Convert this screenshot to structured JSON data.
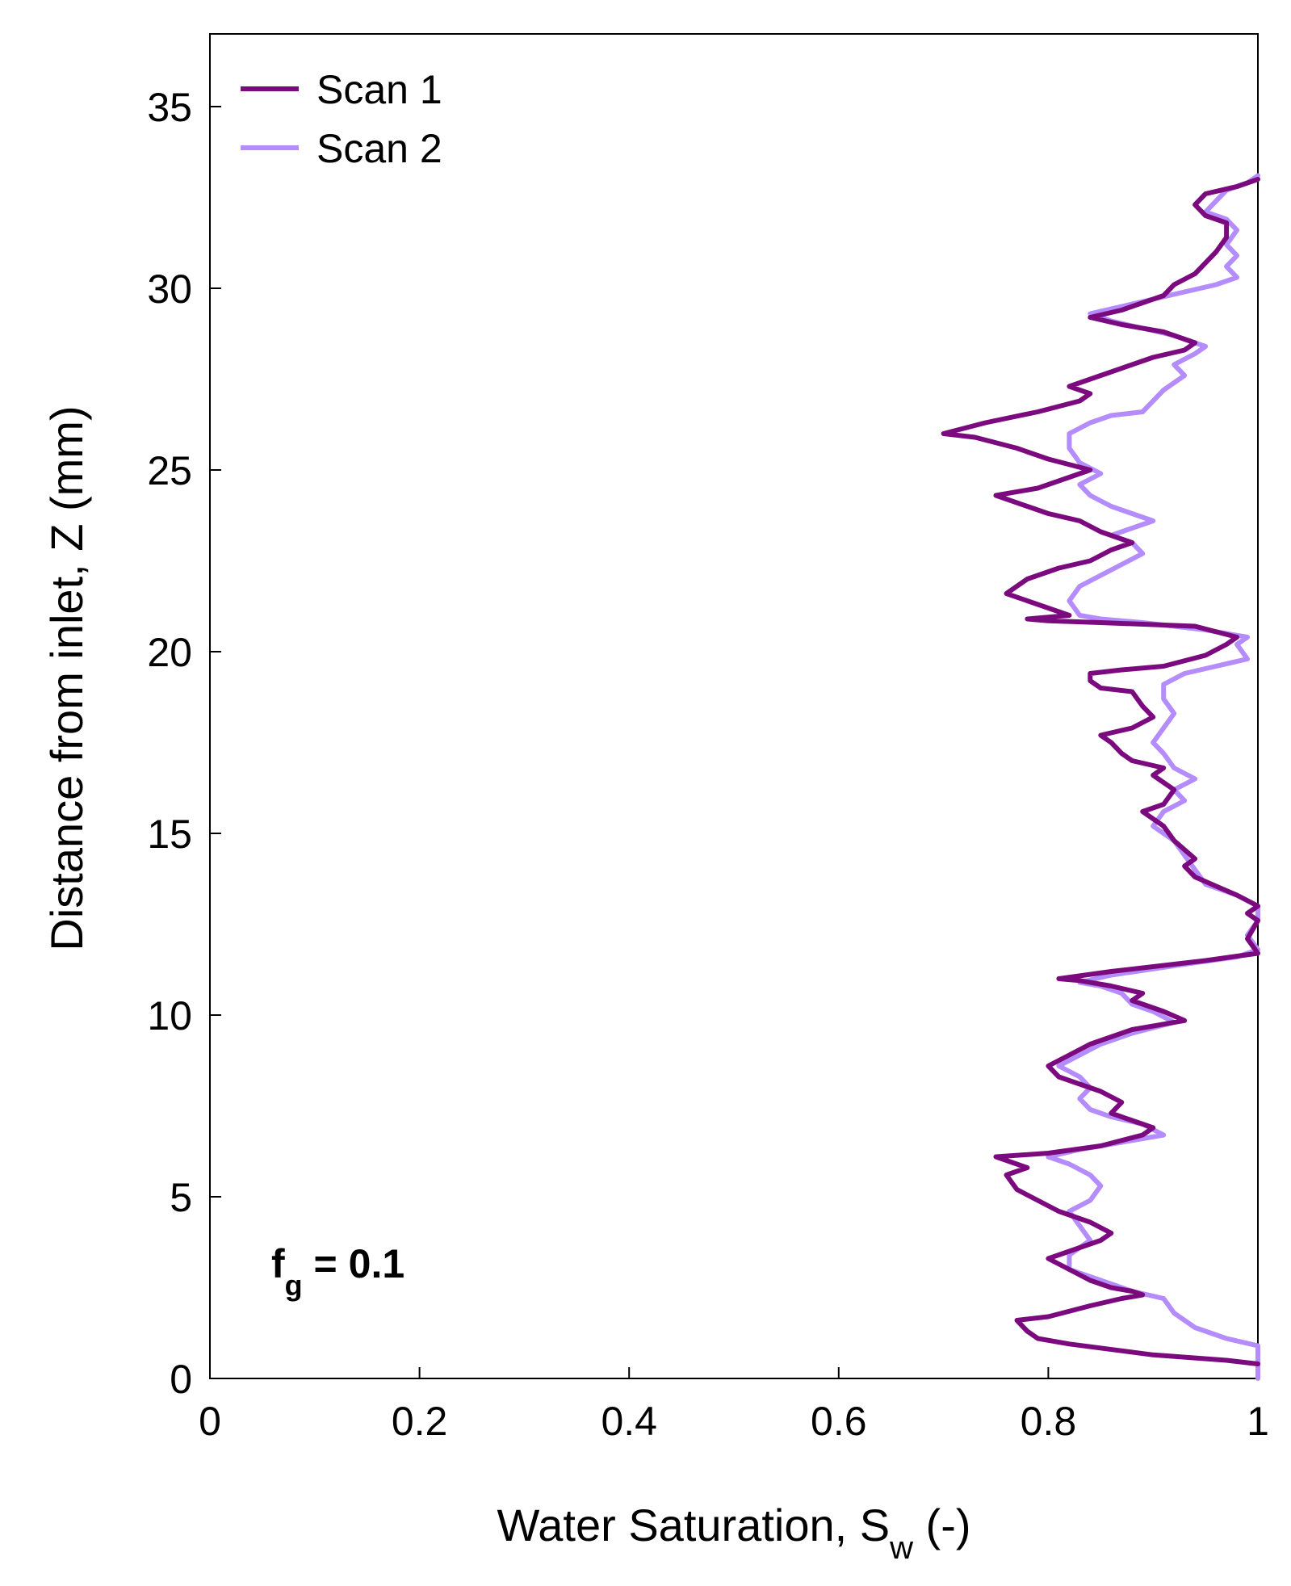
{
  "chart_data": {
    "type": "line",
    "orientation": "vertical-profile",
    "xlabel": "Water Saturation, S",
    "xlabel_subscript": "w",
    "xlabel_suffix": " (-)",
    "ylabel": "Distance from inlet, Z (mm)",
    "xlim": [
      0,
      1
    ],
    "ylim": [
      0,
      37
    ],
    "xticks": [
      0,
      0.2,
      0.4,
      0.6,
      0.8,
      1
    ],
    "xtick_labels": [
      "0",
      "0.2",
      "0.4",
      "0.6",
      "0.8",
      "1"
    ],
    "yticks": [
      0,
      5,
      10,
      15,
      20,
      25,
      30,
      35
    ],
    "ytick_labels": [
      "0",
      "5",
      "10",
      "15",
      "20",
      "25",
      "30",
      "35"
    ],
    "grid": false,
    "legend_position": "top-left",
    "annotation": {
      "main": "f",
      "subscript": "g",
      "rest": " = 0.1"
    },
    "series": [
      {
        "name": "Scan 1",
        "color": "#7b0a7f",
        "points": [
          [
            1.0,
            0.4
          ],
          [
            0.97,
            0.5
          ],
          [
            0.9,
            0.65
          ],
          [
            0.82,
            0.95
          ],
          [
            0.79,
            1.1
          ],
          [
            0.78,
            1.3
          ],
          [
            0.77,
            1.6
          ],
          [
            0.8,
            1.7
          ],
          [
            0.84,
            2.0
          ],
          [
            0.87,
            2.2
          ],
          [
            0.89,
            2.3
          ],
          [
            0.88,
            2.4
          ],
          [
            0.86,
            2.5
          ],
          [
            0.84,
            2.7
          ],
          [
            0.82,
            3.0
          ],
          [
            0.8,
            3.3
          ],
          [
            0.83,
            3.6
          ],
          [
            0.85,
            3.8
          ],
          [
            0.86,
            4.0
          ],
          [
            0.84,
            4.3
          ],
          [
            0.81,
            4.6
          ],
          [
            0.79,
            4.9
          ],
          [
            0.77,
            5.2
          ],
          [
            0.76,
            5.6
          ],
          [
            0.78,
            5.8
          ],
          [
            0.75,
            6.1
          ],
          [
            0.8,
            6.2
          ],
          [
            0.85,
            6.4
          ],
          [
            0.89,
            6.7
          ],
          [
            0.9,
            6.9
          ],
          [
            0.88,
            7.1
          ],
          [
            0.86,
            7.3
          ],
          [
            0.87,
            7.6
          ],
          [
            0.85,
            7.9
          ],
          [
            0.83,
            8.1
          ],
          [
            0.81,
            8.3
          ],
          [
            0.8,
            8.6
          ],
          [
            0.82,
            8.9
          ],
          [
            0.84,
            9.2
          ],
          [
            0.88,
            9.6
          ],
          [
            0.93,
            9.85
          ],
          [
            0.91,
            10.1
          ],
          [
            0.88,
            10.4
          ],
          [
            0.89,
            10.6
          ],
          [
            0.86,
            10.8
          ],
          [
            0.83,
            10.95
          ],
          [
            0.81,
            11.0
          ],
          [
            0.86,
            11.2
          ],
          [
            0.95,
            11.5
          ],
          [
            1.0,
            11.7
          ],
          [
            0.99,
            12.1
          ],
          [
            1.0,
            12.6
          ],
          [
            0.99,
            12.8
          ],
          [
            1.0,
            13.0
          ],
          [
            0.98,
            13.3
          ],
          [
            0.94,
            13.8
          ],
          [
            0.93,
            14.1
          ],
          [
            0.94,
            14.3
          ],
          [
            0.92,
            14.8
          ],
          [
            0.91,
            15.2
          ],
          [
            0.89,
            15.6
          ],
          [
            0.91,
            15.8
          ],
          [
            0.92,
            16.2
          ],
          [
            0.9,
            16.6
          ],
          [
            0.91,
            16.8
          ],
          [
            0.88,
            17.0
          ],
          [
            0.87,
            17.2
          ],
          [
            0.86,
            17.5
          ],
          [
            0.85,
            17.7
          ],
          [
            0.88,
            17.9
          ],
          [
            0.9,
            18.2
          ],
          [
            0.89,
            18.5
          ],
          [
            0.88,
            18.9
          ],
          [
            0.85,
            19.0
          ],
          [
            0.84,
            19.2
          ],
          [
            0.84,
            19.4
          ],
          [
            0.87,
            19.5
          ],
          [
            0.91,
            19.6
          ],
          [
            0.95,
            19.9
          ],
          [
            0.97,
            20.2
          ],
          [
            0.98,
            20.4
          ],
          [
            0.94,
            20.7
          ],
          [
            0.85,
            20.8
          ],
          [
            0.8,
            20.85
          ],
          [
            0.78,
            20.9
          ],
          [
            0.82,
            21.0
          ],
          [
            0.79,
            21.3
          ],
          [
            0.76,
            21.6
          ],
          [
            0.78,
            22.0
          ],
          [
            0.81,
            22.3
          ],
          [
            0.84,
            22.5
          ],
          [
            0.86,
            22.8
          ],
          [
            0.88,
            23.0
          ],
          [
            0.85,
            23.3
          ],
          [
            0.83,
            23.6
          ],
          [
            0.8,
            23.8
          ],
          [
            0.78,
            24.0
          ],
          [
            0.75,
            24.3
          ],
          [
            0.79,
            24.5
          ],
          [
            0.82,
            24.8
          ],
          [
            0.84,
            25.0
          ],
          [
            0.8,
            25.3
          ],
          [
            0.77,
            25.6
          ],
          [
            0.73,
            25.9
          ],
          [
            0.7,
            26.0
          ],
          [
            0.74,
            26.3
          ],
          [
            0.79,
            26.6
          ],
          [
            0.83,
            26.9
          ],
          [
            0.84,
            27.1
          ],
          [
            0.82,
            27.3
          ],
          [
            0.84,
            27.5
          ],
          [
            0.87,
            27.8
          ],
          [
            0.9,
            28.1
          ],
          [
            0.93,
            28.3
          ],
          [
            0.94,
            28.5
          ],
          [
            0.91,
            28.8
          ],
          [
            0.87,
            29.0
          ],
          [
            0.84,
            29.2
          ],
          [
            0.87,
            29.4
          ],
          [
            0.89,
            29.6
          ],
          [
            0.91,
            29.8
          ],
          [
            0.92,
            30.1
          ],
          [
            0.94,
            30.4
          ],
          [
            0.95,
            30.7
          ],
          [
            0.96,
            31.0
          ],
          [
            0.97,
            31.4
          ],
          [
            0.97,
            31.8
          ],
          [
            0.95,
            32.0
          ],
          [
            0.94,
            32.3
          ],
          [
            0.95,
            32.6
          ],
          [
            0.98,
            32.8
          ],
          [
            1.0,
            33.0
          ]
        ]
      },
      {
        "name": "Scan 2",
        "color": "#b48cfc",
        "points": [
          [
            1.0,
            0.0
          ],
          [
            1.0,
            0.9
          ],
          [
            0.97,
            1.1
          ],
          [
            0.94,
            1.4
          ],
          [
            0.92,
            1.8
          ],
          [
            0.91,
            2.2
          ],
          [
            0.88,
            2.4
          ],
          [
            0.86,
            2.6
          ],
          [
            0.84,
            2.8
          ],
          [
            0.82,
            3.0
          ],
          [
            0.82,
            3.4
          ],
          [
            0.84,
            3.8
          ],
          [
            0.83,
            4.2
          ],
          [
            0.82,
            4.6
          ],
          [
            0.84,
            4.9
          ],
          [
            0.85,
            5.3
          ],
          [
            0.84,
            5.6
          ],
          [
            0.82,
            5.9
          ],
          [
            0.8,
            6.1
          ],
          [
            0.83,
            6.3
          ],
          [
            0.87,
            6.5
          ],
          [
            0.91,
            6.7
          ],
          [
            0.89,
            7.0
          ],
          [
            0.86,
            7.2
          ],
          [
            0.84,
            7.4
          ],
          [
            0.83,
            7.7
          ],
          [
            0.84,
            8.0
          ],
          [
            0.83,
            8.3
          ],
          [
            0.81,
            8.6
          ],
          [
            0.83,
            8.9
          ],
          [
            0.85,
            9.2
          ],
          [
            0.88,
            9.5
          ],
          [
            0.92,
            9.8
          ],
          [
            0.9,
            10.1
          ],
          [
            0.88,
            10.3
          ],
          [
            0.87,
            10.6
          ],
          [
            0.85,
            10.8
          ],
          [
            0.83,
            10.9
          ],
          [
            0.86,
            11.1
          ],
          [
            0.93,
            11.4
          ],
          [
            0.98,
            11.6
          ],
          [
            1.0,
            11.8
          ],
          [
            0.99,
            12.2
          ],
          [
            1.0,
            12.6
          ],
          [
            1.0,
            13.0
          ],
          [
            0.98,
            13.3
          ],
          [
            0.95,
            13.6
          ],
          [
            0.94,
            14.0
          ],
          [
            0.93,
            14.4
          ],
          [
            0.92,
            14.8
          ],
          [
            0.9,
            15.2
          ],
          [
            0.91,
            15.6
          ],
          [
            0.93,
            15.9
          ],
          [
            0.92,
            16.2
          ],
          [
            0.94,
            16.5
          ],
          [
            0.92,
            16.8
          ],
          [
            0.91,
            17.2
          ],
          [
            0.9,
            17.5
          ],
          [
            0.91,
            17.9
          ],
          [
            0.92,
            18.3
          ],
          [
            0.91,
            18.7
          ],
          [
            0.91,
            19.1
          ],
          [
            0.93,
            19.4
          ],
          [
            0.96,
            19.6
          ],
          [
            0.99,
            19.8
          ],
          [
            0.98,
            20.2
          ],
          [
            0.99,
            20.4
          ],
          [
            0.95,
            20.6
          ],
          [
            0.89,
            20.8
          ],
          [
            0.85,
            20.9
          ],
          [
            0.83,
            21.0
          ],
          [
            0.82,
            21.4
          ],
          [
            0.83,
            21.8
          ],
          [
            0.85,
            22.1
          ],
          [
            0.87,
            22.4
          ],
          [
            0.89,
            22.7
          ],
          [
            0.88,
            23.0
          ],
          [
            0.86,
            23.2
          ],
          [
            0.88,
            23.4
          ],
          [
            0.9,
            23.6
          ],
          [
            0.88,
            23.8
          ],
          [
            0.86,
            24.0
          ],
          [
            0.84,
            24.3
          ],
          [
            0.83,
            24.6
          ],
          [
            0.85,
            24.9
          ],
          [
            0.83,
            25.2
          ],
          [
            0.82,
            25.6
          ],
          [
            0.82,
            26.0
          ],
          [
            0.84,
            26.3
          ],
          [
            0.86,
            26.5
          ],
          [
            0.89,
            26.6
          ],
          [
            0.9,
            26.9
          ],
          [
            0.91,
            27.2
          ],
          [
            0.93,
            27.6
          ],
          [
            0.92,
            27.9
          ],
          [
            0.94,
            28.2
          ],
          [
            0.95,
            28.4
          ],
          [
            0.92,
            28.7
          ],
          [
            0.89,
            28.9
          ],
          [
            0.86,
            29.1
          ],
          [
            0.84,
            29.3
          ],
          [
            0.87,
            29.5
          ],
          [
            0.9,
            29.7
          ],
          [
            0.93,
            29.9
          ],
          [
            0.96,
            30.1
          ],
          [
            0.98,
            30.3
          ],
          [
            0.97,
            30.6
          ],
          [
            0.98,
            30.9
          ],
          [
            0.97,
            31.2
          ],
          [
            0.98,
            31.6
          ],
          [
            0.97,
            31.9
          ],
          [
            0.95,
            32.1
          ],
          [
            0.96,
            32.4
          ],
          [
            0.97,
            32.7
          ],
          [
            0.99,
            32.9
          ],
          [
            1.0,
            33.1
          ]
        ]
      }
    ]
  }
}
